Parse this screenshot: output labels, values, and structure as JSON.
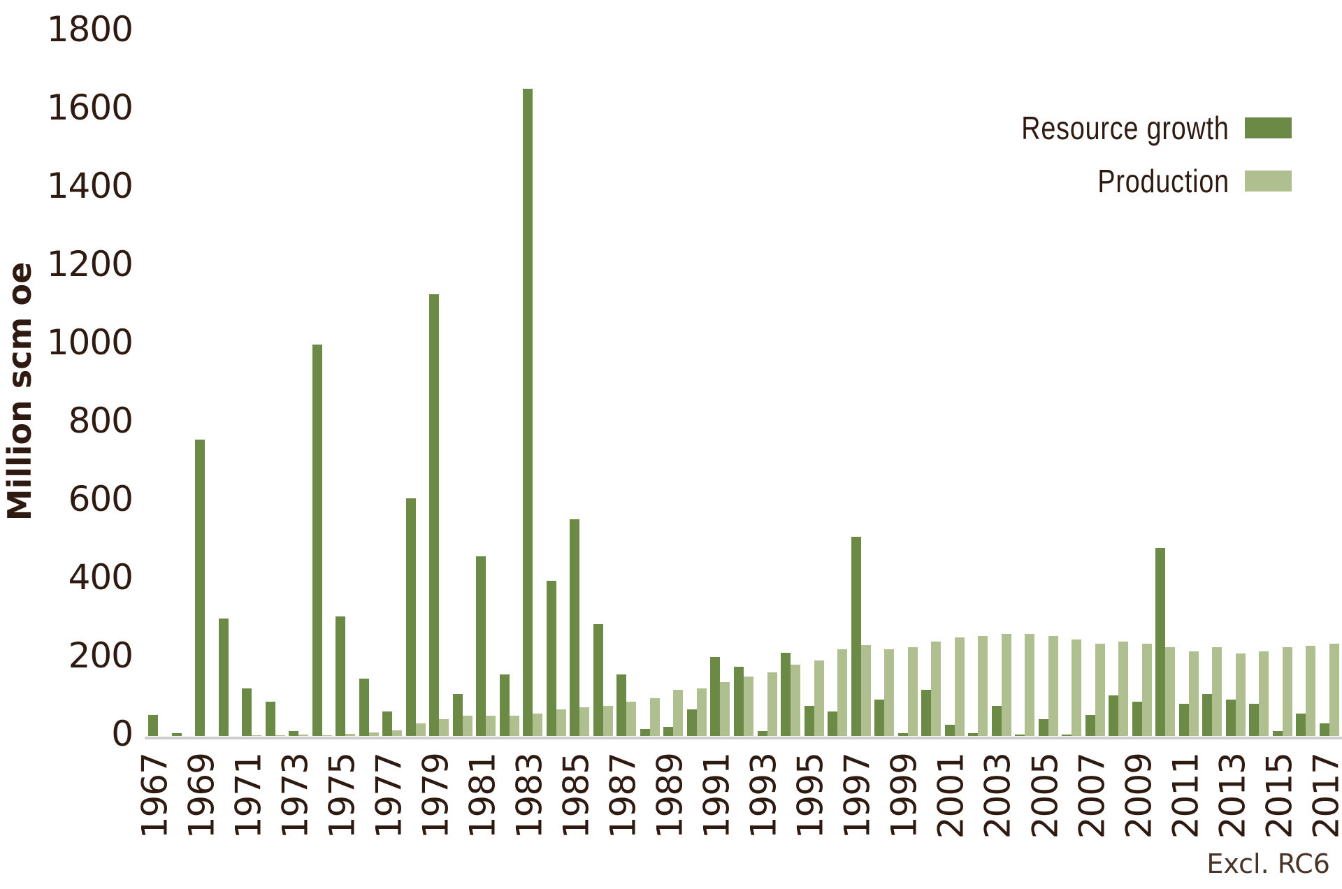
{
  "chart_data": {
    "type": "bar",
    "title": "",
    "xlabel": "",
    "ylabel": "Million scm oe",
    "ylim": [
      0,
      1800
    ],
    "yticks": [
      0,
      200,
      400,
      600,
      800,
      1000,
      1200,
      1400,
      1600,
      1800
    ],
    "grid": false,
    "legend_position": "top-right",
    "annotation": "Excl. RC6",
    "categories": [
      1967,
      1968,
      1969,
      1970,
      1971,
      1972,
      1973,
      1974,
      1975,
      1976,
      1977,
      1978,
      1979,
      1980,
      1981,
      1982,
      1983,
      1984,
      1985,
      1986,
      1987,
      1988,
      1989,
      1990,
      1991,
      1992,
      1993,
      1994,
      1995,
      1996,
      1997,
      1998,
      1999,
      2000,
      2001,
      2002,
      2003,
      2004,
      2005,
      2006,
      2007,
      2008,
      2009,
      2010,
      2011,
      2012,
      2013,
      2014,
      2015,
      2016,
      2017
    ],
    "xtick_labels": [
      "1967",
      "1969",
      "1971",
      "1973",
      "1975",
      "1977",
      "1979",
      "1981",
      "1983",
      "1985",
      "1987",
      "1989",
      "1991",
      "1993",
      "1995",
      "1997",
      "1999",
      "2001",
      "2003",
      "2005",
      "2007",
      "2009",
      "2011",
      "2013",
      "2015",
      "2017"
    ],
    "series": [
      {
        "name": "Resource growth",
        "color": "#6a8a45",
        "values": [
          54,
          7,
          757,
          300,
          121,
          88,
          13,
          1000,
          305,
          146,
          63,
          607,
          1128,
          107,
          459,
          157,
          1653,
          396,
          554,
          286,
          157,
          18,
          23,
          67,
          202,
          177,
          13,
          212,
          77,
          63,
          509,
          92,
          8,
          117,
          28,
          8,
          77,
          3,
          43,
          3,
          53,
          103,
          88,
          480,
          83,
          107,
          92,
          83,
          13,
          58,
          33
        ]
      },
      {
        "name": "Production",
        "color": "#afbf8f",
        "values": [
          0,
          0,
          0,
          0,
          2,
          2,
          3,
          2,
          5,
          9,
          15,
          32,
          43,
          52,
          52,
          52,
          58,
          67,
          73,
          77,
          88,
          97,
          117,
          122,
          137,
          152,
          162,
          182,
          192,
          221,
          232,
          221,
          226,
          241,
          251,
          256,
          261,
          261,
          256,
          246,
          236,
          241,
          236,
          226,
          216,
          226,
          211,
          216,
          226,
          231,
          236
        ]
      }
    ]
  },
  "axis": {
    "ylabel": "Million scm oe",
    "yticks": [
      "0",
      "200",
      "400",
      "600",
      "800",
      "1000",
      "1200",
      "1400",
      "1600",
      "1800"
    ]
  },
  "legend": {
    "items": [
      {
        "label": "Resource growth",
        "color": "#6a8a45"
      },
      {
        "label": "Production",
        "color": "#afbf8f"
      }
    ]
  },
  "note": "Excl. RC6"
}
